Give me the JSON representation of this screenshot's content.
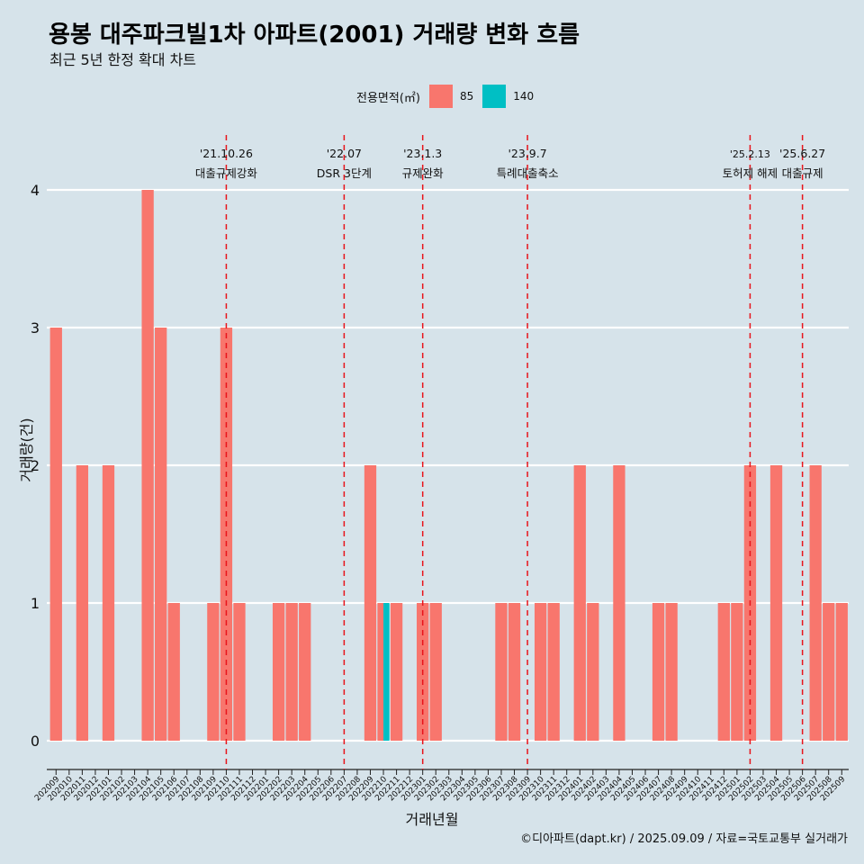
{
  "title": "용봉 대주파크빌1차 아파트(2001) 거래량 변화 흐름",
  "subtitle": "최근 5년 한정 확대 차트",
  "caption": "©디아파트(dapt.kr) / 2025.09.09 / 자료=국토교통부 실거래가",
  "legend": {
    "title": "전용면적(㎡)",
    "items": [
      {
        "label": "85",
        "color": "#f8766d"
      },
      {
        "label": "140",
        "color": "#00bfc4"
      }
    ]
  },
  "chart_data": {
    "type": "bar",
    "xlabel": "거래년월",
    "ylabel": "거래량(건)",
    "ylim": [
      0,
      4
    ],
    "yticks": [
      0,
      1,
      2,
      3,
      4
    ],
    "grid": true,
    "legend_position": "top",
    "categories": [
      "202009",
      "202010",
      "202011",
      "202012",
      "202101",
      "202102",
      "202103",
      "202104",
      "202105",
      "202106",
      "202107",
      "202108",
      "202109",
      "202110",
      "202111",
      "202112",
      "202201",
      "202202",
      "202203",
      "202204",
      "202205",
      "202206",
      "202207",
      "202208",
      "202209",
      "202210",
      "202211",
      "202212",
      "202301",
      "202302",
      "202303",
      "202304",
      "202305",
      "202306",
      "202307",
      "202308",
      "202309",
      "202310",
      "202311",
      "202312",
      "202401",
      "202402",
      "202403",
      "202404",
      "202405",
      "202406",
      "202407",
      "202408",
      "202409",
      "202410",
      "202411",
      "202412",
      "202501",
      "202502",
      "202503",
      "202504",
      "202505",
      "202506",
      "202507",
      "202508",
      "202509"
    ],
    "series": [
      {
        "name": "85",
        "color": "#f8766d",
        "values": [
          3,
          0,
          2,
          0,
          2,
          0,
          0,
          4,
          3,
          1,
          0,
          0,
          1,
          3,
          1,
          0,
          0,
          1,
          1,
          1,
          0,
          0,
          0,
          0,
          2,
          1,
          1,
          0,
          1,
          1,
          0,
          0,
          0,
          0,
          1,
          1,
          0,
          1,
          1,
          0,
          2,
          1,
          0,
          2,
          0,
          0,
          1,
          1,
          0,
          0,
          0,
          1,
          1,
          2,
          0,
          2,
          0,
          0,
          2,
          1,
          1
        ]
      },
      {
        "name": "140",
        "color": "#00bfc4",
        "values": [
          0,
          0,
          0,
          0,
          0,
          0,
          0,
          0,
          0,
          0,
          0,
          0,
          0,
          0,
          0,
          0,
          0,
          0,
          0,
          0,
          0,
          0,
          0,
          0,
          0,
          1,
          0,
          0,
          0,
          0,
          0,
          0,
          0,
          0,
          0,
          0,
          0,
          0,
          0,
          0,
          0,
          0,
          0,
          0,
          0,
          0,
          0,
          0,
          0,
          0,
          0,
          0,
          0,
          0,
          0,
          0,
          0,
          0,
          0,
          0,
          0
        ]
      }
    ],
    "annotations": [
      {
        "date": "'21.10.26",
        "label": "대출규제강화",
        "at": "202110"
      },
      {
        "date": "'22.07",
        "label": "DSR 3단계",
        "at": "202207"
      },
      {
        "date": "'23.1.3",
        "label": "규제완화",
        "at": "202301"
      },
      {
        "date": "'23.9.7",
        "label": "특례대출축소",
        "at": "202309"
      },
      {
        "date": "'25.2.13",
        "label": "토허제 해제",
        "at": "202502"
      },
      {
        "date": "'25.6.27",
        "label": "대출규제",
        "at": "202506"
      }
    ]
  }
}
